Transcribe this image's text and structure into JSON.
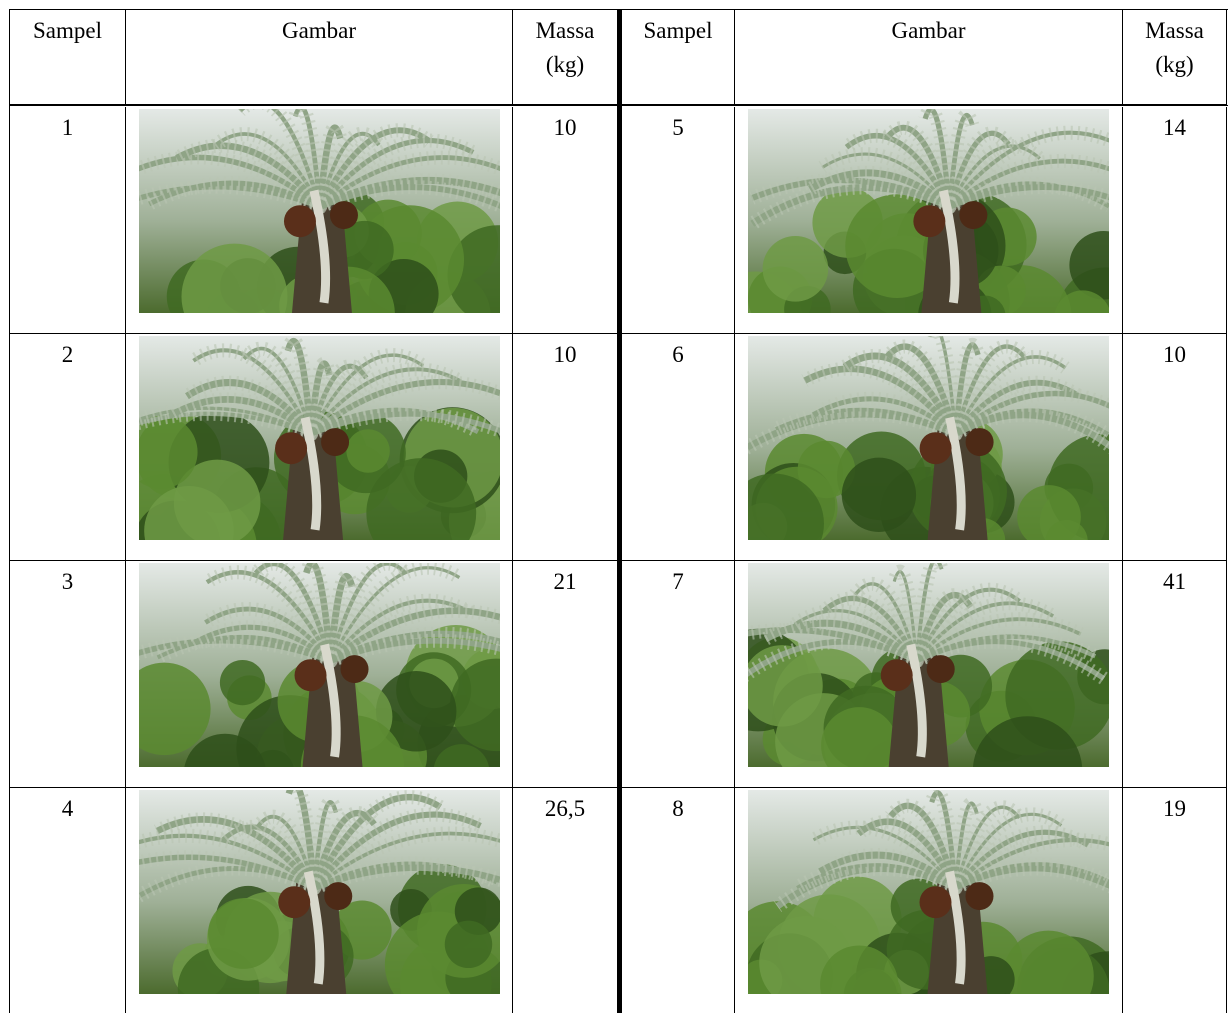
{
  "table": {
    "header": [
      "Sampel",
      "Gambar",
      "Massa (kg)",
      "Sampel",
      "Gambar",
      "Massa (kg)"
    ],
    "rows": [
      [
        "1",
        "10",
        "5",
        "14"
      ],
      [
        "2",
        "10",
        "6",
        "10"
      ],
      [
        "3",
        "21",
        "7",
        "41"
      ],
      [
        "4",
        "26,5",
        "8",
        "19"
      ]
    ]
  }
}
